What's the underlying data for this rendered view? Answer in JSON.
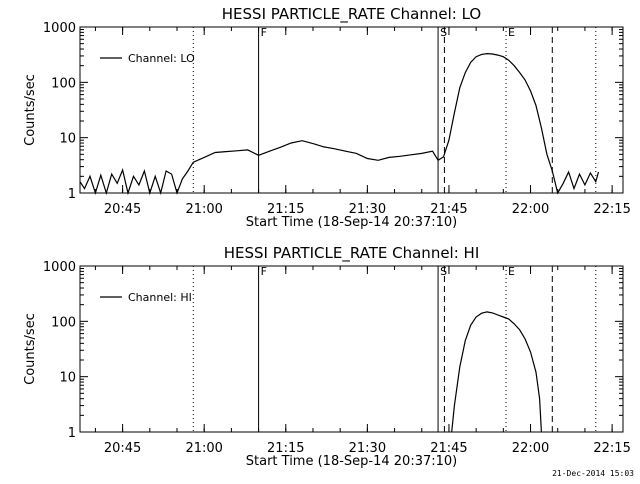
{
  "chart_data": [
    {
      "type": "line",
      "title": "HESSI PARTICLE_RATE Channel: LO",
      "xlabel": "Start Time (18-Sep-14 20:37:10)",
      "ylabel": "Counts/sec",
      "yscale": "log",
      "ylim": [
        1,
        1000
      ],
      "xlim": [
        "20:37:10",
        "22:17:00"
      ],
      "ytick_labels": [
        "1",
        "10",
        "100",
        "1000"
      ],
      "xtick_labels": [
        "20:45",
        "21:00",
        "21:15",
        "21:30",
        "21:45",
        "22:00",
        "22:15"
      ],
      "legend": {
        "placement": "top-left",
        "entries": [
          "Channel: LO"
        ]
      },
      "series": [
        {
          "name": "Channel: LO",
          "points": [
            [
              "20:37:10",
              1.6
            ],
            [
              "20:38:00",
              1.2
            ],
            [
              "20:39:00",
              2.0
            ],
            [
              "20:40:00",
              1.0
            ],
            [
              "20:41:00",
              2.1
            ],
            [
              "20:42:00",
              1.0
            ],
            [
              "20:43:00",
              2.2
            ],
            [
              "20:44:00",
              1.5
            ],
            [
              "20:45:00",
              2.6
            ],
            [
              "20:46:00",
              1.0
            ],
            [
              "20:47:00",
              2.0
            ],
            [
              "20:48:00",
              1.4
            ],
            [
              "20:49:00",
              2.5
            ],
            [
              "20:50:00",
              1.0
            ],
            [
              "20:51:00",
              2.0
            ],
            [
              "20:52:00",
              1.0
            ],
            [
              "20:53:00",
              2.5
            ],
            [
              "20:54:00",
              2.2
            ],
            [
              "20:55:00",
              1.0
            ],
            [
              "20:56:00",
              1.8
            ],
            [
              "20:57:00",
              2.5
            ],
            [
              "20:58:00",
              3.6
            ],
            [
              "21:00:00",
              4.4
            ],
            [
              "21:02:00",
              5.4
            ],
            [
              "21:04:00",
              5.6
            ],
            [
              "21:06:00",
              5.8
            ],
            [
              "21:08:00",
              6.0
            ],
            [
              "21:10:00",
              4.8
            ],
            [
              "21:12:00",
              5.7
            ],
            [
              "21:14:00",
              6.7
            ],
            [
              "21:16:00",
              8.0
            ],
            [
              "21:18:00",
              8.8
            ],
            [
              "21:20:00",
              7.8
            ],
            [
              "21:22:00",
              6.8
            ],
            [
              "21:24:00",
              6.3
            ],
            [
              "21:26:00",
              5.7
            ],
            [
              "21:28:00",
              5.2
            ],
            [
              "21:30:00",
              4.2
            ],
            [
              "21:32:00",
              3.9
            ],
            [
              "21:34:00",
              4.4
            ],
            [
              "21:36:00",
              4.6
            ],
            [
              "21:38:00",
              4.9
            ],
            [
              "21:40:00",
              5.2
            ],
            [
              "21:42:00",
              5.7
            ],
            [
              "21:43:00",
              3.9
            ],
            [
              "21:44:00",
              4.5
            ],
            [
              "21:45:00",
              9.0
            ],
            [
              "21:46:00",
              28
            ],
            [
              "21:47:00",
              80
            ],
            [
              "21:48:00",
              150
            ],
            [
              "21:49:00",
              230
            ],
            [
              "21:50:00",
              290
            ],
            [
              "21:51:00",
              320
            ],
            [
              "21:52:00",
              330
            ],
            [
              "21:53:00",
              325
            ],
            [
              "21:54:00",
              310
            ],
            [
              "21:55:00",
              290
            ],
            [
              "21:56:00",
              250
            ],
            [
              "21:57:00",
              200
            ],
            [
              "21:58:00",
              150
            ],
            [
              "21:59:00",
              110
            ],
            [
              "22:00:00",
              70
            ],
            [
              "22:01:00",
              38
            ],
            [
              "22:02:00",
              15
            ],
            [
              "22:03:00",
              5
            ],
            [
              "22:04:00",
              2.5
            ],
            [
              "22:05:00",
              1.0
            ],
            [
              "22:06:00",
              1.5
            ],
            [
              "22:07:00",
              2.4
            ],
            [
              "22:08:00",
              1.2
            ],
            [
              "22:09:00",
              2.2
            ],
            [
              "22:10:00",
              1.4
            ],
            [
              "22:11:00",
              2.3
            ],
            [
              "22:12:00",
              1.6
            ],
            [
              "22:12:30",
              2.4
            ]
          ]
        }
      ],
      "markers": [
        {
          "time": "20:58:00",
          "style": "dotted",
          "label": ""
        },
        {
          "time": "21:10:00",
          "style": "solid",
          "label": "F"
        },
        {
          "time": "21:43:00",
          "style": "solid",
          "label": "S"
        },
        {
          "time": "21:44:10",
          "style": "dashed",
          "label": ""
        },
        {
          "time": "21:55:30",
          "style": "dotted",
          "label": "E"
        },
        {
          "time": "22:04:00",
          "style": "dashed",
          "label": ""
        },
        {
          "time": "22:12:00",
          "style": "dotted",
          "label": ""
        }
      ]
    },
    {
      "type": "line",
      "title": "HESSI PARTICLE_RATE Channel: HI",
      "xlabel": "Start Time (18-Sep-14 20:37:10)",
      "ylabel": "Counts/sec",
      "yscale": "log",
      "ylim": [
        1,
        1000
      ],
      "xlim": [
        "20:37:10",
        "22:17:00"
      ],
      "ytick_labels": [
        "1",
        "10",
        "100",
        "1000"
      ],
      "xtick_labels": [
        "20:45",
        "21:00",
        "21:15",
        "21:30",
        "21:45",
        "22:00",
        "22:15"
      ],
      "legend": {
        "placement": "top-left",
        "entries": [
          "Channel: HI"
        ]
      },
      "series": [
        {
          "name": "Channel: HI",
          "points": [
            [
              "21:45:30",
              1.0
            ],
            [
              "21:46:00",
              3.0
            ],
            [
              "21:47:00",
              15
            ],
            [
              "21:48:00",
              45
            ],
            [
              "21:49:00",
              85
            ],
            [
              "21:50:00",
              120
            ],
            [
              "21:51:00",
              140
            ],
            [
              "21:52:00",
              148
            ],
            [
              "21:53:00",
              142
            ],
            [
              "21:54:00",
              130
            ],
            [
              "21:55:00",
              120
            ],
            [
              "21:56:00",
              110
            ],
            [
              "21:57:00",
              90
            ],
            [
              "21:58:00",
              70
            ],
            [
              "21:59:00",
              48
            ],
            [
              "22:00:00",
              28
            ],
            [
              "22:01:00",
              12
            ],
            [
              "22:01:40",
              4
            ],
            [
              "22:02:00",
              1.0
            ]
          ]
        }
      ],
      "markers": [
        {
          "time": "20:58:00",
          "style": "dotted",
          "label": ""
        },
        {
          "time": "21:10:00",
          "style": "solid",
          "label": "F"
        },
        {
          "time": "21:43:00",
          "style": "solid",
          "label": "S"
        },
        {
          "time": "21:44:10",
          "style": "dashed",
          "label": ""
        },
        {
          "time": "21:55:30",
          "style": "dotted",
          "label": "E"
        },
        {
          "time": "22:04:00",
          "style": "dashed",
          "label": ""
        },
        {
          "time": "22:12:00",
          "style": "dotted",
          "label": ""
        }
      ]
    }
  ],
  "footer": {
    "timestamp": "21-Dec-2014 15:03"
  }
}
